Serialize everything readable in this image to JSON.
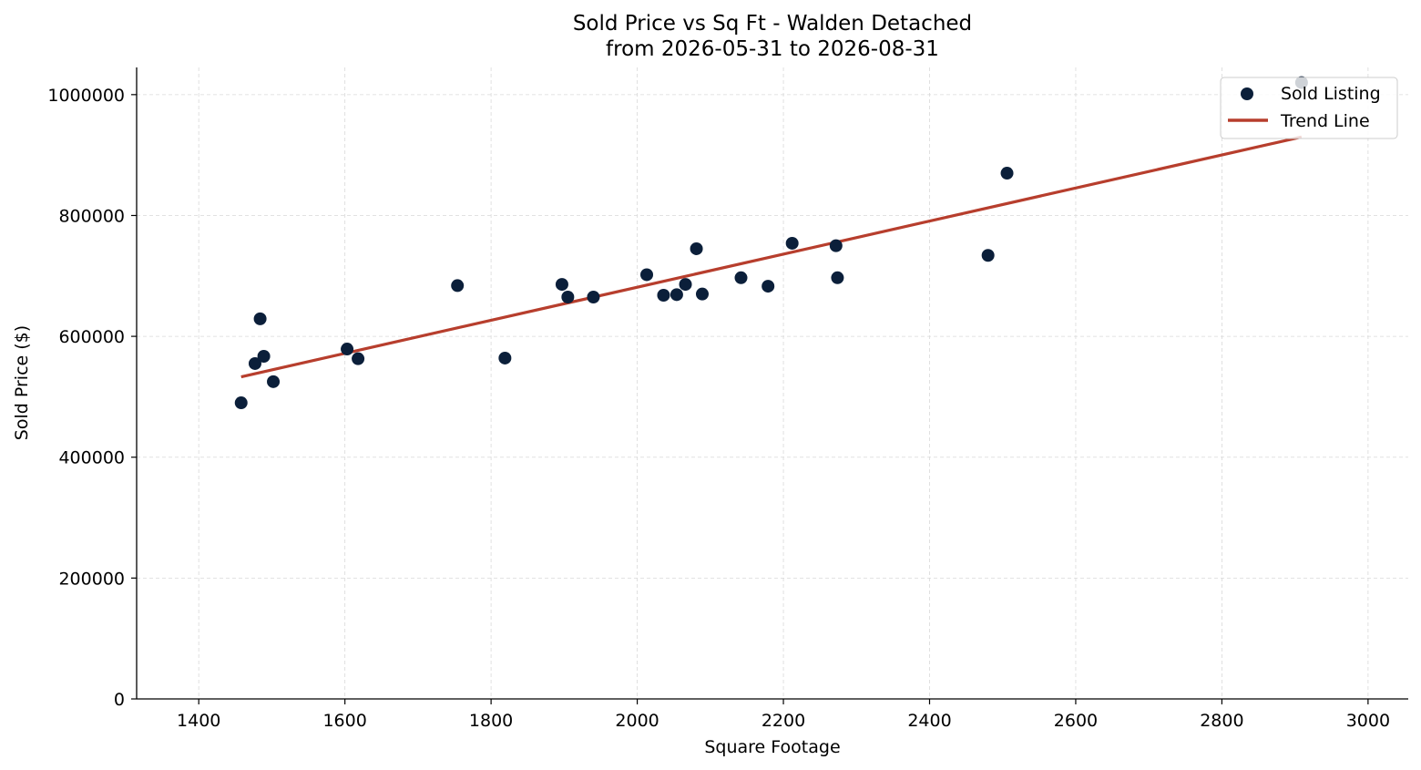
{
  "chart_data": {
    "type": "scatter",
    "title": "Sold Price vs Sq Ft - Walden Detached",
    "subtitle": "from 2026-05-31 to 2026-08-31",
    "xlabel": "Square Footage",
    "ylabel": "Sold Price ($)",
    "xlim": [
      1315,
      3055
    ],
    "ylim": [
      0,
      1045000
    ],
    "xticks": [
      1400,
      1600,
      1800,
      2000,
      2200,
      2400,
      2600,
      2800,
      3000
    ],
    "yticks": [
      0,
      200000,
      400000,
      600000,
      800000,
      1000000
    ],
    "grid": true,
    "legend_position": "top-right",
    "series": [
      {
        "name": "Sold Listing",
        "kind": "scatter",
        "color": "#0b1f3a",
        "points": [
          [
            1458,
            490000
          ],
          [
            1477,
            555000
          ],
          [
            1484,
            629000
          ],
          [
            1489,
            567000
          ],
          [
            1502,
            525000
          ],
          [
            1603,
            579000
          ],
          [
            1618,
            563000
          ],
          [
            1754,
            684000
          ],
          [
            1819,
            564000
          ],
          [
            1897,
            686000
          ],
          [
            1905,
            665000
          ],
          [
            1940,
            665000
          ],
          [
            2013,
            702000
          ],
          [
            2036,
            668000
          ],
          [
            2054,
            669000
          ],
          [
            2066,
            686000
          ],
          [
            2081,
            745000
          ],
          [
            2089,
            670000
          ],
          [
            2142,
            697000
          ],
          [
            2179,
            683000
          ],
          [
            2212,
            754000
          ],
          [
            2272,
            750000
          ],
          [
            2274,
            697000
          ],
          [
            2480,
            734000
          ],
          [
            2506,
            870000
          ],
          [
            2909,
            1020000
          ]
        ]
      },
      {
        "name": "Trend Line",
        "kind": "line",
        "color": "#b73e2d",
        "points": [
          [
            1458,
            533000
          ],
          [
            2909,
            930000
          ]
        ]
      }
    ]
  }
}
